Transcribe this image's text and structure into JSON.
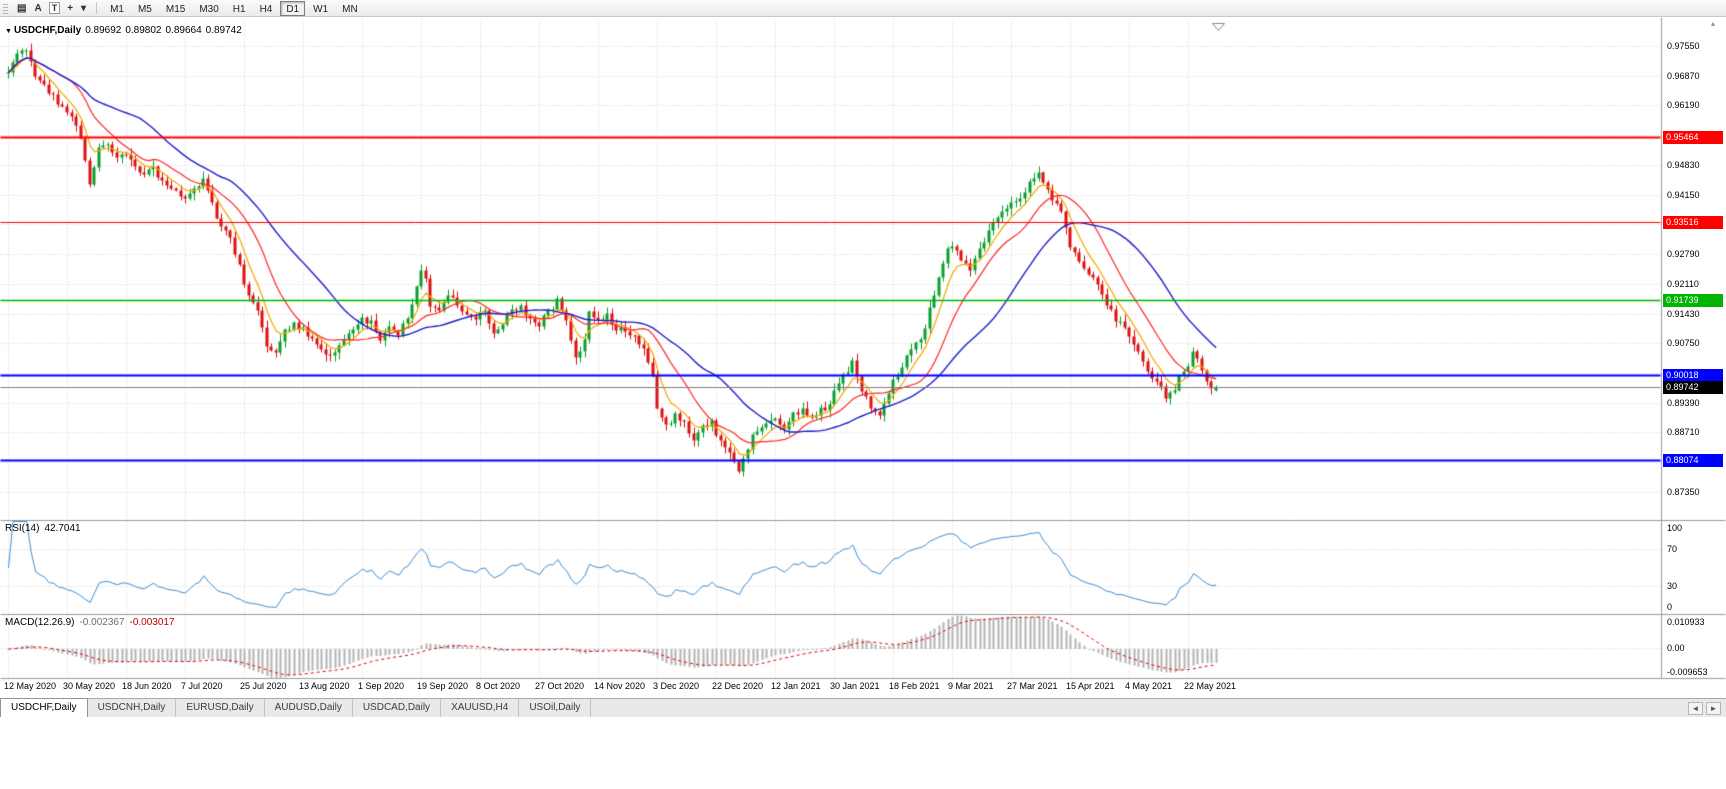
{
  "toolbar": {
    "icons": [
      {
        "name": "charts-grid-icon",
        "glyph": "▤",
        "boxed": false
      },
      {
        "name": "annotation-letter-icon",
        "glyph": "A",
        "boxed": false
      },
      {
        "name": "text-tool-icon",
        "glyph": "T",
        "boxed": true
      },
      {
        "name": "crosshair-tool-icon",
        "glyph": "+",
        "boxed": false
      },
      {
        "name": "chevron-down-icon",
        "glyph": "▾",
        "boxed": false
      }
    ],
    "timeframes": [
      "M1",
      "M5",
      "M15",
      "M30",
      "H1",
      "H4",
      "D1",
      "W1",
      "MN"
    ],
    "active_timeframe": "D1"
  },
  "chart": {
    "dropdown_glyph": "▼",
    "symbol_period": "USDCHF,Daily",
    "ohlc": {
      "open": "0.89692",
      "high": "0.89802",
      "low": "0.89664",
      "close": "0.89742"
    },
    "price_axis": [
      {
        "text": "0.97550",
        "value": 0.9755
      },
      {
        "text": "0.96870",
        "value": 0.9687
      },
      {
        "text": "0.96190",
        "value": 0.9619
      },
      {
        "text": "0.94830",
        "value": 0.9483
      },
      {
        "text": "0.94150",
        "value": 0.9415
      },
      {
        "text": "0.92790",
        "value": 0.9279
      },
      {
        "text": "0.92110",
        "value": 0.9211
      },
      {
        "text": "0.91430",
        "value": 0.9143
      },
      {
        "text": "0.90750",
        "value": 0.9075
      },
      {
        "text": "0.89390",
        "value": 0.8939
      },
      {
        "text": "0.88710",
        "value": 0.8871
      },
      {
        "text": "0.87350",
        "value": 0.8735
      }
    ],
    "price_tags": [
      {
        "text": "0.95464",
        "value": 0.95464,
        "bg": "#ff0000"
      },
      {
        "text": "0.93516",
        "value": 0.93516,
        "bg": "#ff0000"
      },
      {
        "text": "0.91739",
        "value": 0.91739,
        "bg": "#00b400"
      },
      {
        "text": "0.90018",
        "value": 0.90018,
        "bg": "#0000ff"
      },
      {
        "text": "0.89742",
        "value": 0.89742,
        "bg": "#000000"
      },
      {
        "text": "0.88074",
        "value": 0.88074,
        "bg": "#0000ff"
      }
    ],
    "dates": [
      "12 May 2020",
      "30 May 2020",
      "18 Jun 2020",
      "7 Jul 2020",
      "25 Jul 2020",
      "13 Aug 2020",
      "1 Sep 2020",
      "19 Sep 2020",
      "8 Oct 2020",
      "27 Oct 2020",
      "14 Nov 2020",
      "3 Dec 2020",
      "22 Dec 2020",
      "12 Jan 2021",
      "30 Jan 2021",
      "18 Feb 2021",
      "9 Mar 2021",
      "27 Mar 2021",
      "15 Apr 2021",
      "4 May 2021",
      "22 May 2021"
    ]
  },
  "rsi_panel": {
    "name": "RSI(14)",
    "value": "42.7041",
    "line_color": "#3f8fd2",
    "axis": [
      {
        "text": "100",
        "value": 100
      },
      {
        "text": "70",
        "value": 70
      },
      {
        "text": "30",
        "value": 30
      },
      {
        "text": "0",
        "value": 0
      }
    ]
  },
  "macd_panel": {
    "name": "MACD(12.26.9)",
    "value_main": "-0.002367",
    "value_signal": "-0.003017",
    "histogram_color": "#b4b4b4",
    "signal_color": "#e00000",
    "axis": [
      {
        "text": "0.010933",
        "value": 0.010933
      },
      {
        "text": "0.00",
        "value": 0
      },
      {
        "text": "-0.009653",
        "value": -0.009653
      }
    ]
  },
  "tabs": {
    "items": [
      "USDCHF,Daily",
      "USDCNH,Daily",
      "EURUSD,Daily",
      "AUDUSD,Daily",
      "USDCAD,Daily",
      "XAUUSD,H4",
      "USOil,Daily"
    ],
    "active": "USDCHF,Daily",
    "scroll_left": "◄",
    "scroll_right": "►"
  },
  "chart_data": {
    "type": "candlestick",
    "symbol": "USDCHF",
    "timeframe": "Daily",
    "bars_visible": 267,
    "y_range": [
      0.86707,
      0.98145
    ],
    "grid_values": [
      0.9755,
      0.9687,
      0.9619,
      0.9551,
      0.9483,
      0.9415,
      0.9347,
      0.9279,
      0.9211,
      0.9143,
      0.9075,
      0.9007,
      0.8939,
      0.8871,
      0.8803,
      0.8735
    ],
    "levels": [
      {
        "value": 0.95464,
        "color": "#ff0000",
        "width": 2
      },
      {
        "value": 0.93516,
        "color": "#ff0000",
        "width": 1
      },
      {
        "value": 0.91739,
        "color": "#00b400",
        "width": 1.4
      },
      {
        "value": 0.90018,
        "color": "#0000ff",
        "width": 2
      },
      {
        "value": 0.88074,
        "color": "#0000ff",
        "width": 2
      }
    ],
    "current_price": 0.89742,
    "last_candle": {
      "open": 0.89692,
      "high": 0.89802,
      "low": 0.89664,
      "close": 0.89742
    },
    "up_color": "#0a9f2e",
    "down_color": "#dc1111",
    "moving_averages": [
      {
        "color": "#f5a800",
        "method": "ema",
        "period": 6
      },
      {
        "color": "#ff2a2a",
        "method": "sma",
        "period": 14
      },
      {
        "color": "#2020cc",
        "method": "sma",
        "period": 30
      }
    ],
    "rsi": {
      "period": 14,
      "current": 42.7041
    },
    "macd": {
      "fast": 12,
      "slow": 26,
      "signal_period": 9,
      "current_macd": -0.002367,
      "current_signal": -0.003017
    },
    "price_path": [
      [
        0,
        0.97
      ],
      [
        2,
        0.9738
      ],
      [
        4,
        0.9748
      ],
      [
        6,
        0.9692
      ],
      [
        8,
        0.9665
      ],
      [
        10,
        0.9641
      ],
      [
        13,
        0.961
      ],
      [
        15,
        0.9576
      ],
      [
        17,
        0.95
      ],
      [
        18,
        0.9446
      ],
      [
        20,
        0.952
      ],
      [
        22,
        0.9536
      ],
      [
        24,
        0.95
      ],
      [
        26,
        0.9506
      ],
      [
        28,
        0.9478
      ],
      [
        30,
        0.9461
      ],
      [
        32,
        0.9481
      ],
      [
        34,
        0.9446
      ],
      [
        36,
        0.9431
      ],
      [
        39,
        0.9406
      ],
      [
        41,
        0.9431
      ],
      [
        43,
        0.9451
      ],
      [
        45,
        0.9391
      ],
      [
        47,
        0.9346
      ],
      [
        49,
        0.9321
      ],
      [
        51,
        0.9251
      ],
      [
        53,
        0.9181
      ],
      [
        55,
        0.9146
      ],
      [
        57,
        0.9076
      ],
      [
        59,
        0.9056
      ],
      [
        61,
        0.9106
      ],
      [
        63,
        0.9121
      ],
      [
        65,
        0.9106
      ],
      [
        67,
        0.9081
      ],
      [
        69,
        0.9061
      ],
      [
        71,
        0.9046
      ],
      [
        73,
        0.9071
      ],
      [
        75,
        0.9096
      ],
      [
        78,
        0.9136
      ],
      [
        80,
        0.9121
      ],
      [
        82,
        0.9086
      ],
      [
        84,
        0.9116
      ],
      [
        86,
        0.9101
      ],
      [
        88,
        0.9136
      ],
      [
        90,
        0.9206
      ],
      [
        91,
        0.9241
      ],
      [
        92,
        0.9216
      ],
      [
        93,
        0.9166
      ],
      [
        95,
        0.9151
      ],
      [
        97,
        0.9186
      ],
      [
        99,
        0.9161
      ],
      [
        101,
        0.9146
      ],
      [
        103,
        0.9131
      ],
      [
        105,
        0.9151
      ],
      [
        107,
        0.9101
      ],
      [
        109,
        0.9121
      ],
      [
        111,
        0.9146
      ],
      [
        113,
        0.9161
      ],
      [
        115,
        0.9131
      ],
      [
        117,
        0.9116
      ],
      [
        119,
        0.9151
      ],
      [
        121,
        0.9171
      ],
      [
        123,
        0.9131
      ],
      [
        125,
        0.9041
      ],
      [
        127,
        0.9091
      ],
      [
        128,
        0.9151
      ],
      [
        130,
        0.9126
      ],
      [
        132,
        0.9141
      ],
      [
        134,
        0.9111
      ],
      [
        136,
        0.9106
      ],
      [
        138,
        0.9086
      ],
      [
        140,
        0.9056
      ],
      [
        142,
        0.8996
      ],
      [
        143,
        0.8931
      ],
      [
        145,
        0.8891
      ],
      [
        147,
        0.8911
      ],
      [
        149,
        0.8896
      ],
      [
        151,
        0.8856
      ],
      [
        153,
        0.8881
      ],
      [
        155,
        0.8901
      ],
      [
        156,
        0.8866
      ],
      [
        158,
        0.8841
      ],
      [
        160,
        0.8801
      ],
      [
        161,
        0.8776
      ],
      [
        162,
        0.8811
      ],
      [
        164,
        0.8861
      ],
      [
        166,
        0.8881
      ],
      [
        168,
        0.8896
      ],
      [
        169,
        0.8901
      ],
      [
        171,
        0.8881
      ],
      [
        173,
        0.8911
      ],
      [
        175,
        0.8921
      ],
      [
        177,
        0.8901
      ],
      [
        179,
        0.8921
      ],
      [
        181,
        0.8936
      ],
      [
        183,
        0.8991
      ],
      [
        185,
        0.9011
      ],
      [
        186,
        0.9031
      ],
      [
        188,
        0.8971
      ],
      [
        190,
        0.8931
      ],
      [
        192,
        0.8916
      ],
      [
        194,
        0.8966
      ],
      [
        195,
        0.8986
      ],
      [
        197,
        0.9021
      ],
      [
        199,
        0.9061
      ],
      [
        201,
        0.9081
      ],
      [
        203,
        0.9151
      ],
      [
        205,
        0.9231
      ],
      [
        207,
        0.9291
      ],
      [
        208,
        0.9301
      ],
      [
        210,
        0.9271
      ],
      [
        212,
        0.9251
      ],
      [
        214,
        0.9296
      ],
      [
        216,
        0.9331
      ],
      [
        218,
        0.9361
      ],
      [
        220,
        0.9386
      ],
      [
        221,
        0.9391
      ],
      [
        223,
        0.9411
      ],
      [
        225,
        0.9441
      ],
      [
        227,
        0.9466
      ],
      [
        228,
        0.9441
      ],
      [
        230,
        0.9411
      ],
      [
        232,
        0.9381
      ],
      [
        234,
        0.9296
      ],
      [
        236,
        0.9261
      ],
      [
        238,
        0.9231
      ],
      [
        240,
        0.9206
      ],
      [
        242,
        0.9161
      ],
      [
        244,
        0.9131
      ],
      [
        246,
        0.9111
      ],
      [
        247,
        0.9086
      ],
      [
        249,
        0.9051
      ],
      [
        251,
        0.9011
      ],
      [
        253,
        0.8986
      ],
      [
        255,
        0.8951
      ],
      [
        257,
        0.8976
      ],
      [
        259,
        0.9011
      ],
      [
        261,
        0.9051
      ],
      [
        263,
        0.9021
      ],
      [
        264,
        0.8986
      ],
      [
        265,
        0.8971
      ],
      [
        266,
        0.89742
      ]
    ]
  }
}
